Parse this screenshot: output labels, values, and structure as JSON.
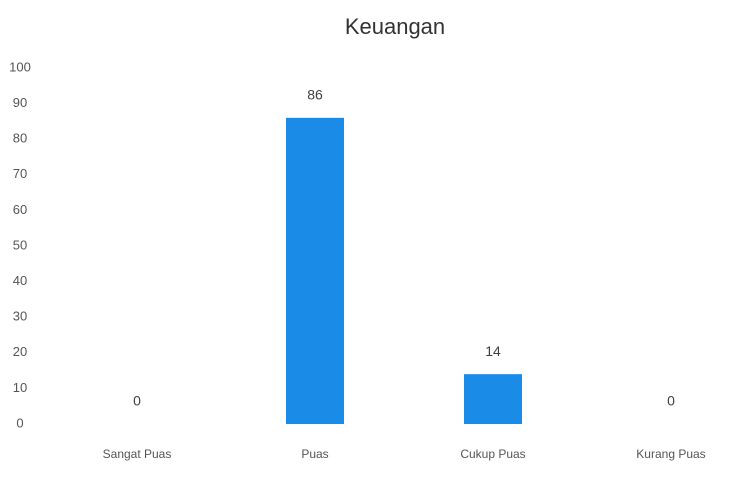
{
  "chart_data": {
    "type": "bar",
    "title": "Keuangan",
    "categories": [
      "Sangat Puas",
      "Puas",
      "Cukup Puas",
      "Kurang Puas"
    ],
    "values": [
      0,
      86,
      14,
      0
    ],
    "color": "#1a8ce8",
    "ylim": [
      0,
      100
    ],
    "yticks": [
      0,
      10,
      20,
      30,
      40,
      50,
      60,
      70,
      80,
      90,
      100
    ],
    "grid": false,
    "data_labels": true
  }
}
